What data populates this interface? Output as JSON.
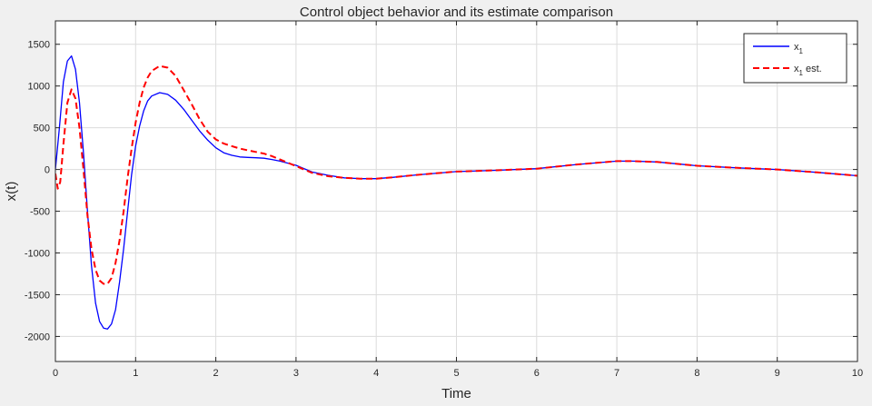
{
  "chart_data": {
    "type": "line",
    "title": "Control object behavior and its estimate comparison",
    "xlabel": "Time",
    "ylabel": "x(t)",
    "xlim": [
      0,
      10
    ],
    "ylim": [
      -2300,
      1500
    ],
    "xticks": [
      "0",
      "1",
      "2",
      "3",
      "4",
      "5",
      "6",
      "7",
      "8",
      "9",
      "10"
    ],
    "yticks": [
      "1500",
      "1000",
      "500",
      "0",
      "-500",
      "-1000",
      "-1500",
      "-2000"
    ],
    "ytick_values": [
      1500,
      1000,
      500,
      0,
      -500,
      -1000,
      -1500,
      -2000
    ],
    "xtick_values": [
      0,
      1,
      2,
      3,
      4,
      5,
      6,
      7,
      8,
      9,
      10
    ],
    "grid": true,
    "legend_position": "top-right",
    "series": [
      {
        "name": "x",
        "name_sub": "1",
        "color": "#0000ff",
        "style": "solid",
        "x": [
          0,
          0.05,
          0.1,
          0.15,
          0.2,
          0.25,
          0.3,
          0.35,
          0.4,
          0.45,
          0.5,
          0.55,
          0.6,
          0.65,
          0.7,
          0.75,
          0.8,
          0.85,
          0.9,
          0.95,
          1.0,
          1.05,
          1.1,
          1.15,
          1.2,
          1.3,
          1.4,
          1.5,
          1.6,
          1.7,
          1.8,
          1.9,
          2.0,
          2.1,
          2.2,
          2.3,
          2.4,
          2.5,
          2.6,
          2.7,
          2.8,
          3.0,
          3.2,
          3.4,
          3.6,
          3.8,
          4.0,
          4.2,
          4.5,
          5.0,
          5.5,
          6.0,
          6.5,
          7.0,
          7.2,
          7.5,
          8.0,
          8.5,
          9.0,
          9.5,
          10.0
        ],
        "y": [
          0,
          500,
          1050,
          1300,
          1360,
          1200,
          800,
          200,
          -500,
          -1150,
          -1600,
          -1820,
          -1900,
          -1910,
          -1850,
          -1680,
          -1350,
          -950,
          -500,
          -60,
          280,
          520,
          700,
          820,
          880,
          920,
          900,
          830,
          720,
          590,
          460,
          350,
          260,
          200,
          170,
          150,
          145,
          140,
          135,
          120,
          100,
          50,
          -30,
          -70,
          -100,
          -110,
          -110,
          -95,
          -65,
          -25,
          -10,
          10,
          60,
          100,
          100,
          90,
          45,
          20,
          0,
          -35,
          -75
        ]
      },
      {
        "name": "x",
        "name_sub": "1",
        "name_suffix": " est.",
        "color": "#ff0000",
        "style": "dashed",
        "x": [
          0,
          0.03,
          0.06,
          0.1,
          0.15,
          0.2,
          0.25,
          0.3,
          0.35,
          0.4,
          0.45,
          0.5,
          0.55,
          0.6,
          0.65,
          0.7,
          0.75,
          0.8,
          0.85,
          0.9,
          0.95,
          1.0,
          1.05,
          1.1,
          1.15,
          1.2,
          1.3,
          1.4,
          1.5,
          1.6,
          1.7,
          1.8,
          1.9,
          2.0,
          2.1,
          2.2,
          2.3,
          2.4,
          2.5,
          2.6,
          2.7,
          2.8,
          3.0,
          3.2,
          3.4,
          3.6,
          3.8,
          4.0,
          4.2,
          4.5,
          5.0,
          5.5,
          6.0,
          6.5,
          7.0,
          7.2,
          7.5,
          8.0,
          8.5,
          9.0,
          9.5,
          10.0
        ],
        "y": [
          -50,
          -230,
          -150,
          300,
          800,
          960,
          850,
          500,
          0,
          -550,
          -950,
          -1200,
          -1330,
          -1370,
          -1370,
          -1300,
          -1120,
          -850,
          -500,
          -100,
          250,
          560,
          800,
          980,
          1100,
          1180,
          1240,
          1220,
          1120,
          950,
          780,
          600,
          450,
          360,
          310,
          280,
          250,
          230,
          210,
          190,
          160,
          120,
          40,
          -40,
          -80,
          -100,
          -110,
          -110,
          -95,
          -65,
          -25,
          -10,
          10,
          60,
          100,
          100,
          90,
          45,
          20,
          0,
          -35,
          -75
        ]
      }
    ]
  }
}
